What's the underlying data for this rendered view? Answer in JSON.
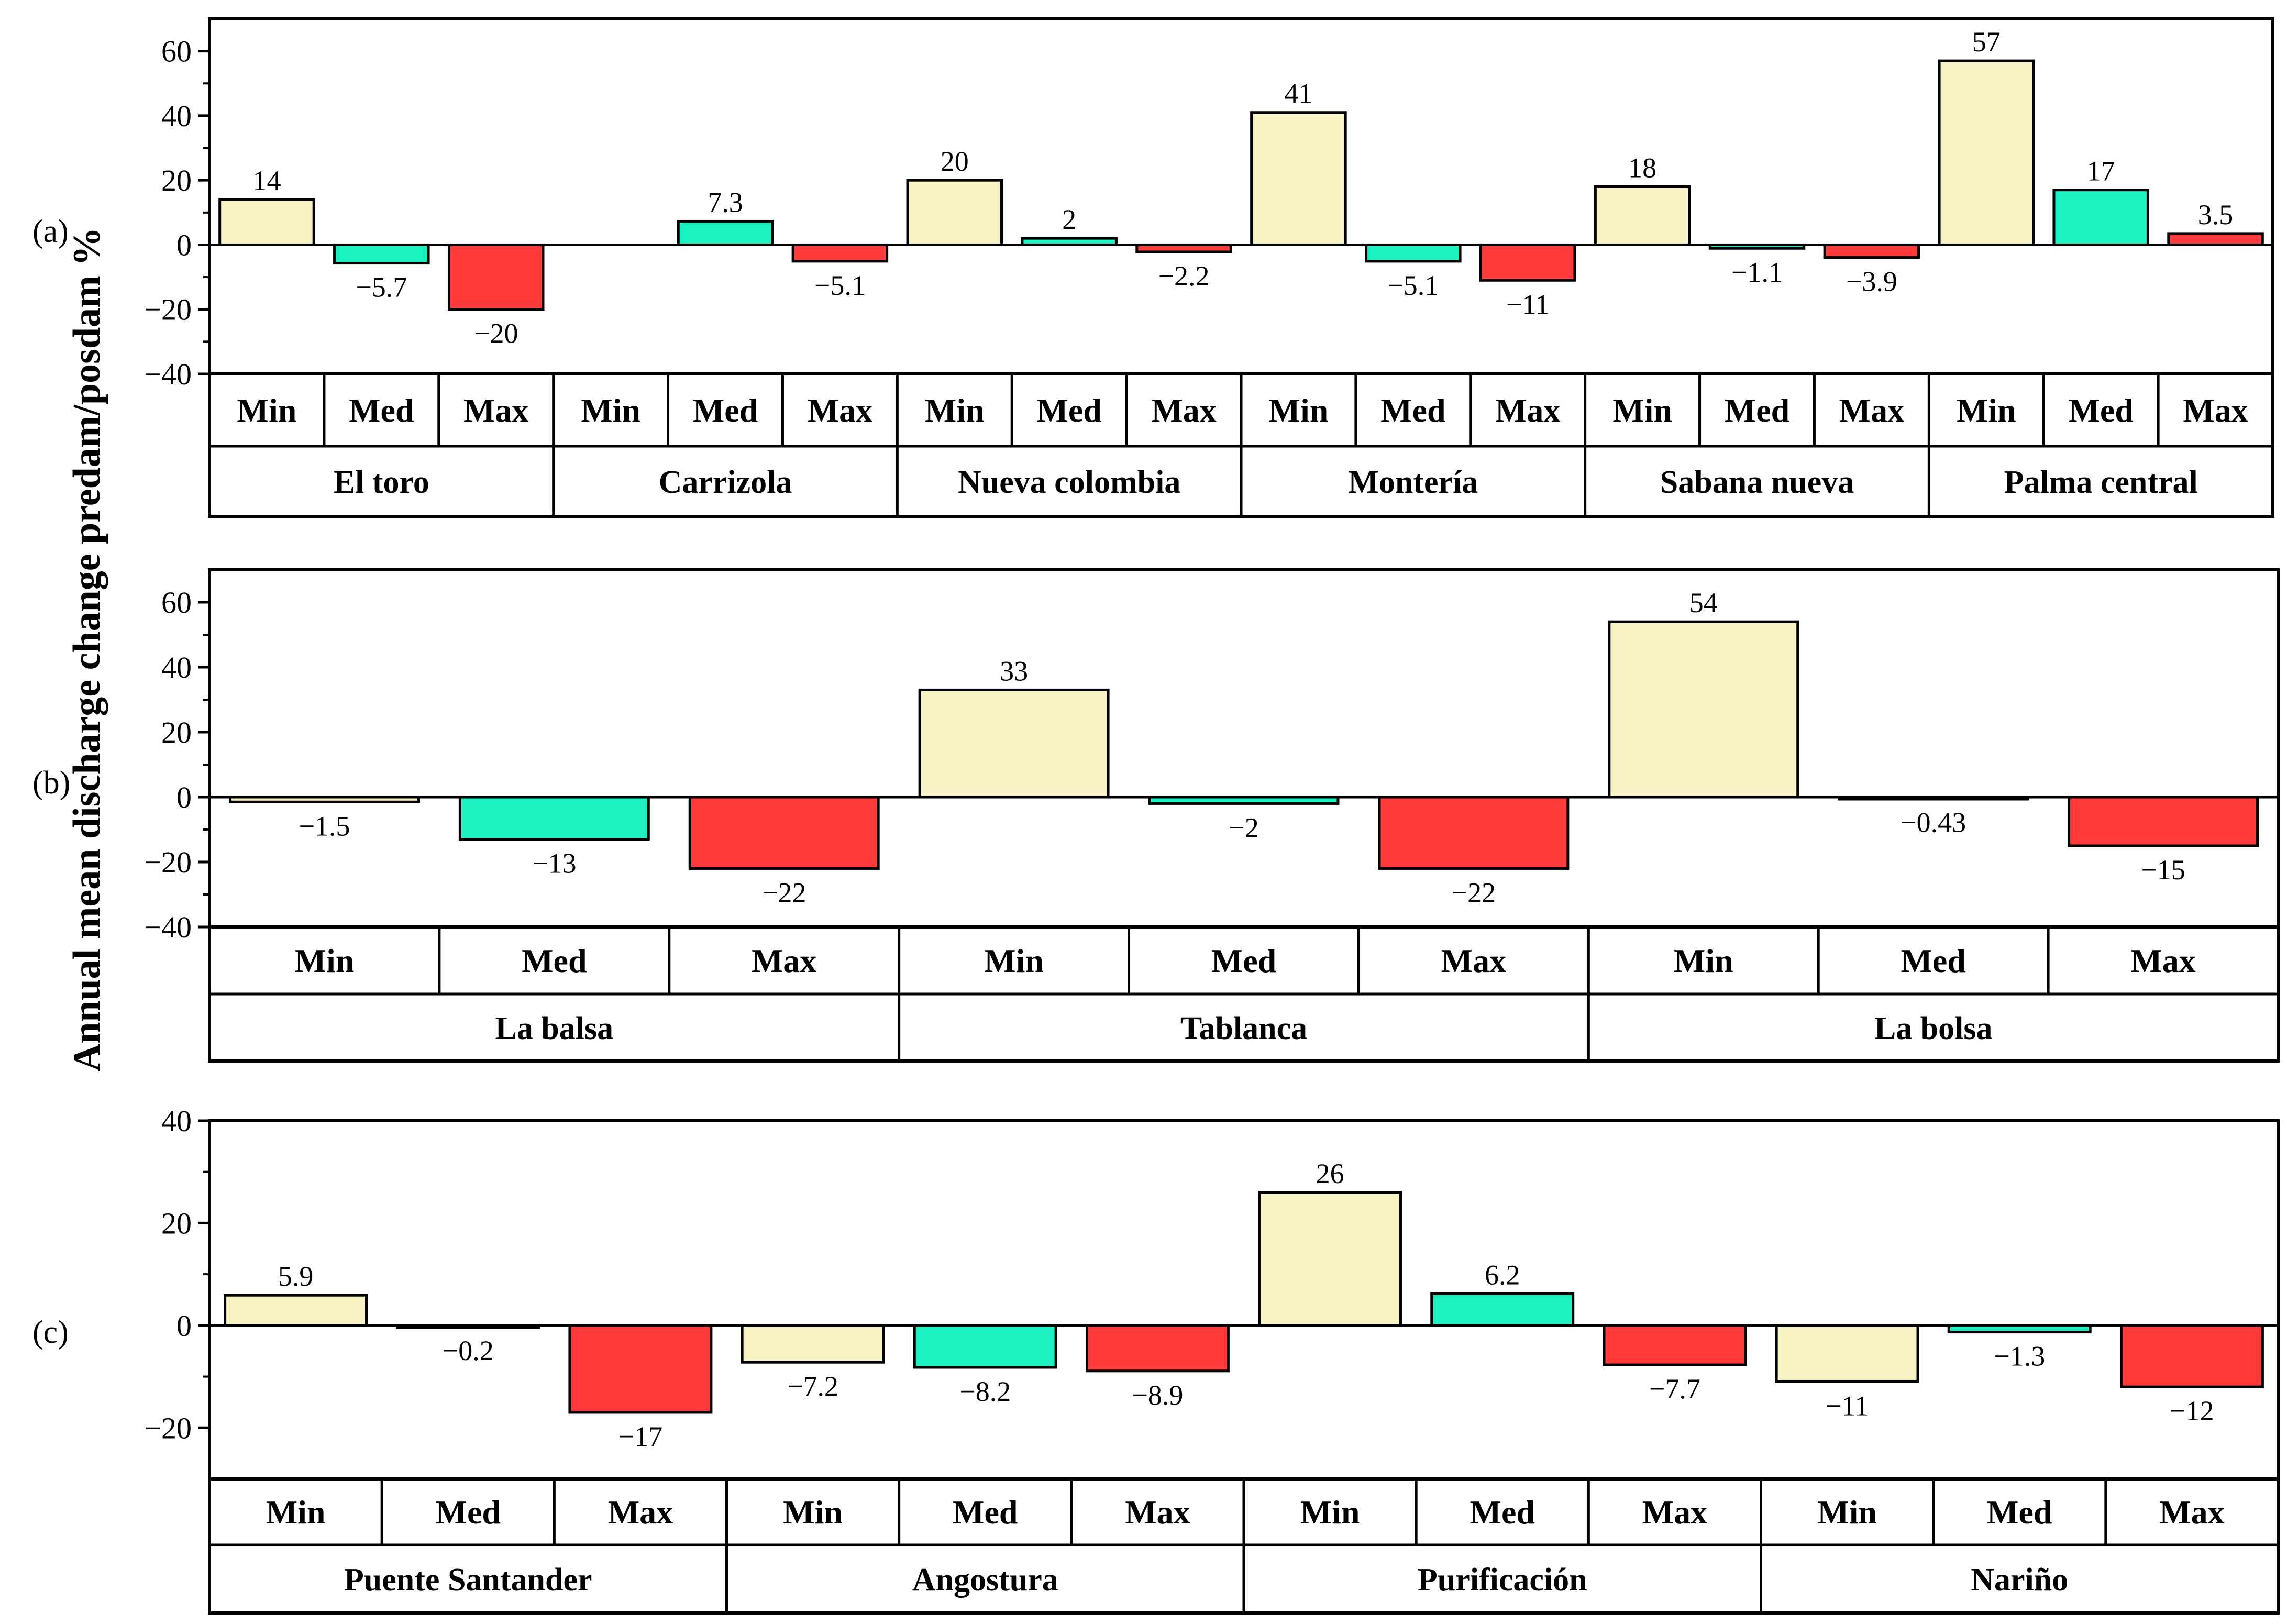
{
  "colors": {
    "min": "#F7F3C4",
    "med": "#1CF2C1",
    "max": "#FF3B3B",
    "frame": "#000000"
  },
  "chart_data": {
    "type": "bar",
    "ylabel": "Annual  mean discharge change predam/posdam %",
    "panels": [
      {
        "label": "(a)",
        "ylim": [
          -40,
          70
        ],
        "yticks": [
          "60",
          "40",
          "20",
          "0",
          "−20",
          "−40"
        ],
        "yticks_values": [
          60,
          40,
          20,
          0,
          -20,
          -40
        ],
        "categories": [
          "Min",
          "Med",
          "Max"
        ],
        "groups": [
          {
            "name": "El toro",
            "values": [
              14,
              -5.7,
              -20
            ],
            "labels": [
              "14",
              "−5.7",
              "−20"
            ]
          },
          {
            "name": "Carrizola",
            "values": [
              null,
              7.3,
              -5.1
            ],
            "labels": [
              "",
              "7.3",
              "−5.1"
            ]
          },
          {
            "name": "Nueva colombia",
            "values": [
              20,
              2,
              -2.2
            ],
            "labels": [
              "20",
              "2",
              "−2.2"
            ]
          },
          {
            "name": "Montería",
            "values": [
              41,
              -5.1,
              -11
            ],
            "labels": [
              "41",
              "−5.1",
              "−11"
            ]
          },
          {
            "name": "Sabana nueva",
            "values": [
              18,
              -1.1,
              -3.9
            ],
            "labels": [
              "18",
              "−1.1",
              "−3.9"
            ]
          },
          {
            "name": "Palma central",
            "values": [
              57,
              17,
              3.5
            ],
            "labels": [
              "57",
              "17",
              "3.5"
            ]
          }
        ]
      },
      {
        "label": "(b)",
        "ylim": [
          -40,
          70
        ],
        "yticks": [
          "60",
          "40",
          "20",
          "0",
          "−20",
          "−40"
        ],
        "yticks_values": [
          60,
          40,
          20,
          0,
          -20,
          -40
        ],
        "categories": [
          "Min",
          "Med",
          "Max"
        ],
        "groups": [
          {
            "name": "La balsa",
            "values": [
              -1.5,
              -13,
              -22
            ],
            "labels": [
              "−1.5",
              "−13",
              "−22"
            ]
          },
          {
            "name": "Tablanca",
            "values": [
              33,
              -2,
              -22
            ],
            "labels": [
              "33",
              "−2",
              "−22"
            ]
          },
          {
            "name": "La bolsa",
            "values": [
              54,
              -0.43,
              -15
            ],
            "labels": [
              "54",
              "−0.43",
              "−15"
            ]
          }
        ]
      },
      {
        "label": "(c)",
        "ylim": [
          -30,
          40
        ],
        "yticks": [
          "40",
          "20",
          "0",
          "−20"
        ],
        "yticks_values": [
          40,
          20,
          0,
          -20
        ],
        "categories": [
          "Min",
          "Med",
          "Max"
        ],
        "groups": [
          {
            "name": "Puente Santander",
            "values": [
              5.9,
              -0.2,
              -17
            ],
            "labels": [
              "5.9",
              "−0.2",
              "−17"
            ]
          },
          {
            "name": "Angostura",
            "values": [
              -7.2,
              -8.2,
              -8.9
            ],
            "labels": [
              "−7.2",
              "−8.2",
              "−8.9"
            ]
          },
          {
            "name": "Purificación",
            "values": [
              26,
              6.2,
              -7.7
            ],
            "labels": [
              "26",
              "6.2",
              "−7.7"
            ]
          },
          {
            "name": "Nariño",
            "values": [
              -11,
              -1.3,
              -12
            ],
            "labels": [
              "−11",
              "−1.3",
              "−12"
            ]
          }
        ]
      }
    ]
  }
}
